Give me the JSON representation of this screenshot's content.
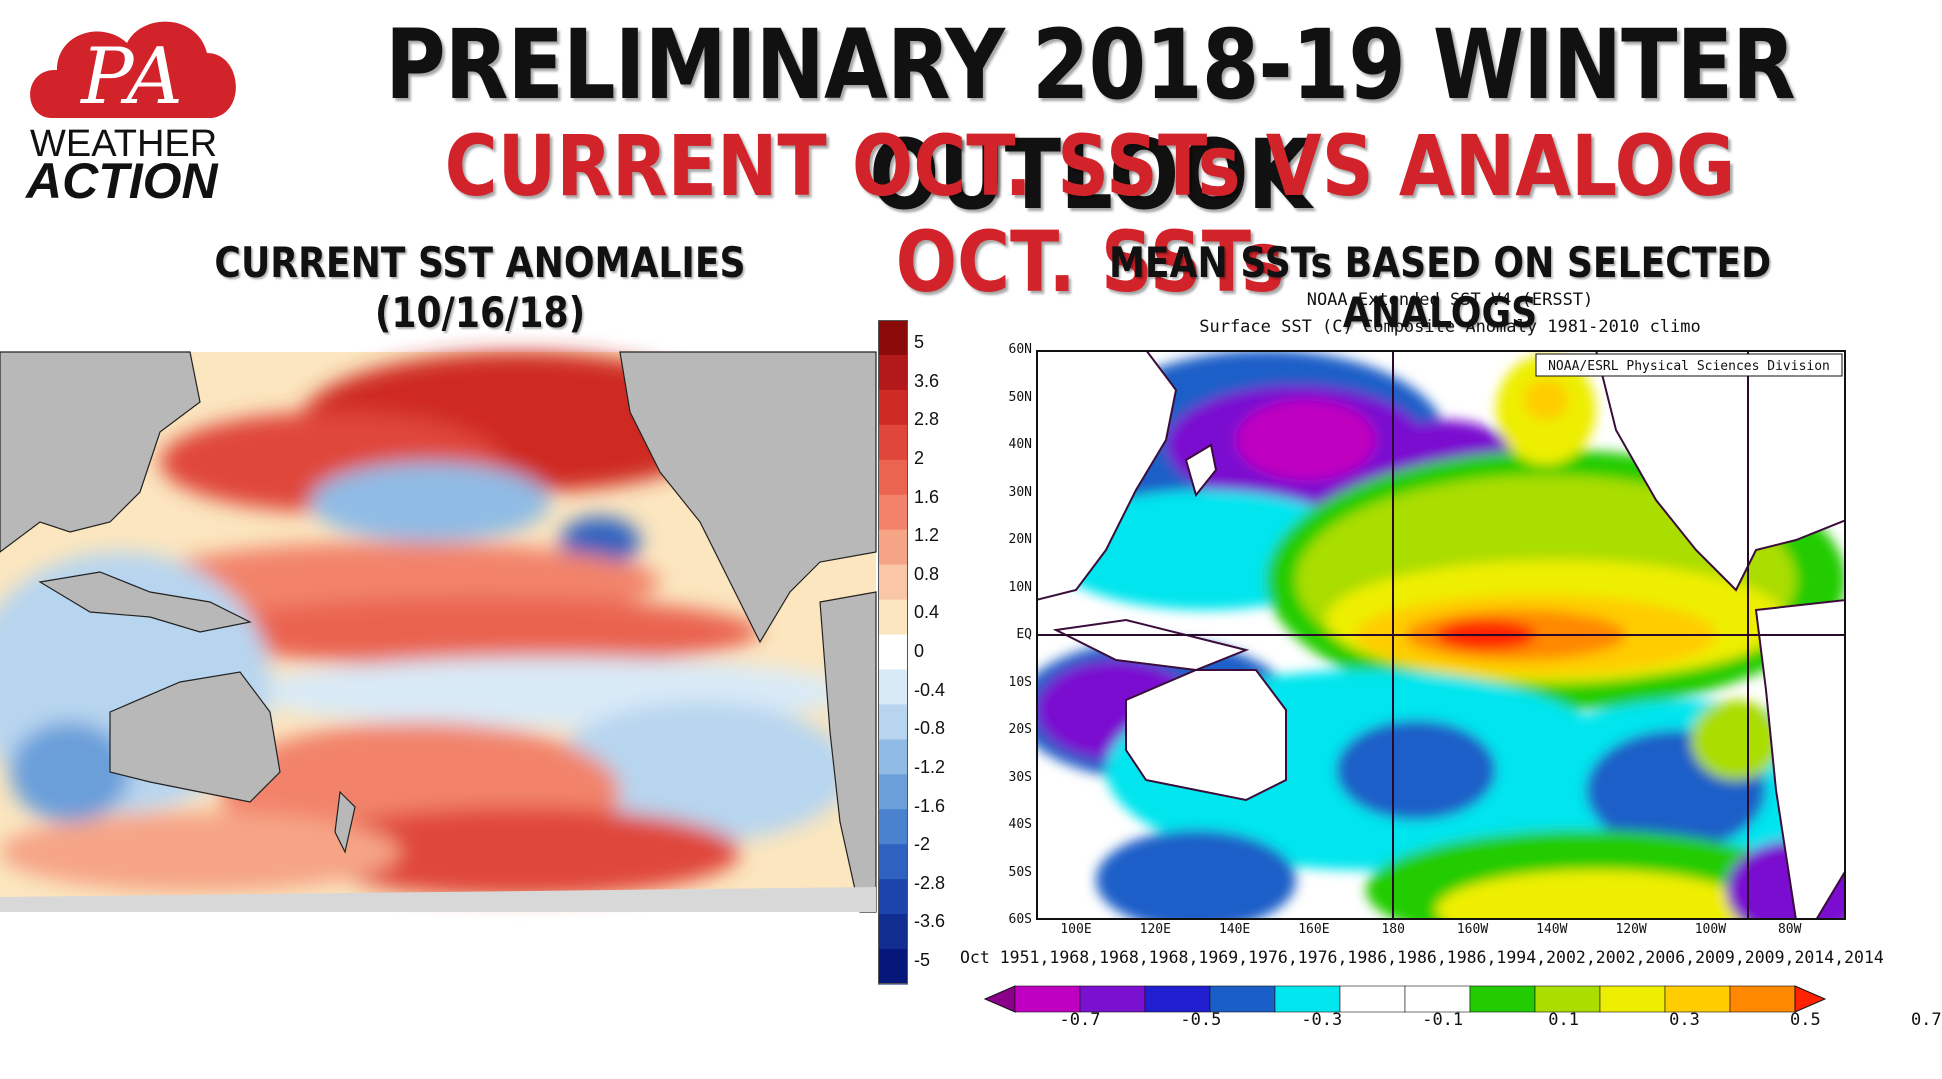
{
  "logo": {
    "line1": "PA",
    "line2": "WEATHER",
    "line3": "ACTION"
  },
  "header": {
    "title": "PRELIMINARY 2018-19 WINTER OUTLOOK",
    "subtitle": "CURRENT OCT. SSTs VS ANALOG OCT. SSTs"
  },
  "left_panel": {
    "title": "CURRENT SST ANOMALIES (10/16/18)",
    "colorbar_labels": [
      "5",
      "3.6",
      "2.8",
      "2",
      "1.6",
      "1.2",
      "0.8",
      "0.4",
      "0",
      "-0.4",
      "-0.8",
      "-1.2",
      "-1.6",
      "-2",
      "-2.8",
      "-3.6",
      "-5"
    ],
    "colorbar_colors": [
      "#8b0a0a",
      "#b3181a",
      "#cf2a24",
      "#e0463a",
      "#ea6450",
      "#f2836a",
      "#f6a486",
      "#f9c6a8",
      "#fbe6bf",
      "#ffffff",
      "#d9eaf7",
      "#b7d5ef",
      "#8fbbe5",
      "#6a9fda",
      "#4a82cf",
      "#2f62c0",
      "#1d44aa",
      "#102d8f",
      "#06177a"
    ]
  },
  "right_panel": {
    "title": "MEAN SSTs BASED ON SELECTED ANALOGS",
    "noaa_line1": "NOAA Extended SST V4 (ERSST)",
    "noaa_line2": "Surface SST (C) Composite Anomaly 1981-2010 climo",
    "credit": "NOAA/ESRL Physical Sciences Division",
    "lat_labels": [
      "60N",
      "50N",
      "40N",
      "30N",
      "20N",
      "10N",
      "EQ",
      "10S",
      "20S",
      "30S",
      "40S",
      "50S",
      "60S"
    ],
    "lon_labels": [
      "100E",
      "120E",
      "140E",
      "160E",
      "180",
      "160W",
      "140W",
      "120W",
      "100W",
      "80W"
    ],
    "analog_years": "Oct 1951,1968,1968,1968,1969,1976,1976,1986,1986,1986,1994,2002,2002,2006,2009,2009,2014,2014",
    "colorbar_labels": [
      "-0.7",
      "-0.5",
      "-0.3",
      "-0.1",
      "0.1",
      "0.3",
      "0.5",
      "0.7"
    ],
    "colorbar_colors": [
      "#8b008b",
      "#c000c0",
      "#7a10d0",
      "#2020d0",
      "#1a5fc8",
      "#00e5ee",
      "#ffffff",
      "#ffffff",
      "#22cc00",
      "#aadd00",
      "#eeee00",
      "#ffcc00",
      "#ff8800",
      "#ff2200"
    ]
  }
}
